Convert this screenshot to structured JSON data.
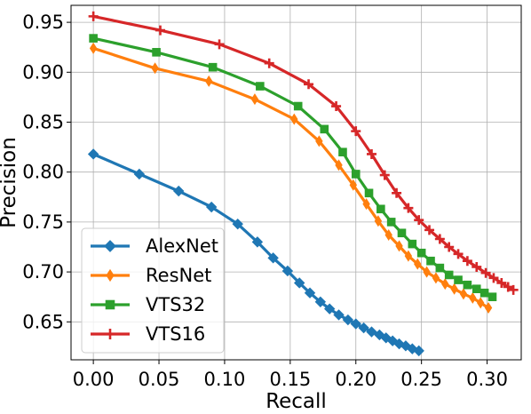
{
  "chart_data": {
    "type": "line",
    "title": "",
    "xlabel": "Recall",
    "ylabel": "Precision",
    "xlim": [
      -0.017,
      0.326
    ],
    "ylim": [
      0.612,
      0.967
    ],
    "grid": true,
    "legend_position": "lower-left",
    "xticks": [
      0.0,
      0.05,
      0.1,
      0.15,
      0.2,
      0.25,
      0.3
    ],
    "xtick_labels": [
      "0.00",
      "0.05",
      "0.10",
      "0.15",
      "0.20",
      "0.25",
      "0.30"
    ],
    "yticks": [
      0.65,
      0.7,
      0.75,
      0.8,
      0.85,
      0.9,
      0.95
    ],
    "ytick_labels": [
      "0.65",
      "0.70",
      "0.75",
      "0.80",
      "0.85",
      "0.90",
      "0.95"
    ],
    "series": [
      {
        "name": "AlexNet",
        "color": "#1f77b4",
        "marker": "diamond",
        "points": [
          [
            0.0,
            0.818
          ],
          [
            0.035,
            0.798
          ],
          [
            0.065,
            0.781
          ],
          [
            0.09,
            0.765
          ],
          [
            0.11,
            0.748
          ],
          [
            0.125,
            0.73
          ],
          [
            0.137,
            0.714
          ],
          [
            0.148,
            0.701
          ],
          [
            0.157,
            0.689
          ],
          [
            0.165,
            0.679
          ],
          [
            0.173,
            0.67
          ],
          [
            0.18,
            0.663
          ],
          [
            0.187,
            0.657
          ],
          [
            0.194,
            0.652
          ],
          [
            0.2,
            0.648
          ],
          [
            0.206,
            0.644
          ],
          [
            0.212,
            0.64
          ],
          [
            0.218,
            0.637
          ],
          [
            0.223,
            0.634
          ],
          [
            0.228,
            0.631
          ],
          [
            0.233,
            0.628
          ],
          [
            0.238,
            0.626
          ],
          [
            0.243,
            0.623
          ],
          [
            0.248,
            0.621
          ]
        ]
      },
      {
        "name": "ResNet",
        "color": "#ff7f0e",
        "marker": "thin-diamond",
        "points": [
          [
            0.0,
            0.924
          ],
          [
            0.047,
            0.904
          ],
          [
            0.088,
            0.891
          ],
          [
            0.123,
            0.873
          ],
          [
            0.153,
            0.853
          ],
          [
            0.172,
            0.831
          ],
          [
            0.187,
            0.807
          ],
          [
            0.198,
            0.787
          ],
          [
            0.208,
            0.768
          ],
          [
            0.217,
            0.751
          ],
          [
            0.225,
            0.737
          ],
          [
            0.233,
            0.726
          ],
          [
            0.24,
            0.716
          ],
          [
            0.247,
            0.708
          ],
          [
            0.254,
            0.7
          ],
          [
            0.261,
            0.694
          ],
          [
            0.268,
            0.688
          ],
          [
            0.275,
            0.683
          ],
          [
            0.282,
            0.678
          ],
          [
            0.289,
            0.674
          ],
          [
            0.295,
            0.669
          ],
          [
            0.301,
            0.664
          ]
        ]
      },
      {
        "name": "VTS32",
        "color": "#2ca02c",
        "marker": "square",
        "points": [
          [
            0.0,
            0.934
          ],
          [
            0.048,
            0.92
          ],
          [
            0.091,
            0.905
          ],
          [
            0.127,
            0.886
          ],
          [
            0.156,
            0.866
          ],
          [
            0.176,
            0.843
          ],
          [
            0.19,
            0.82
          ],
          [
            0.2,
            0.798
          ],
          [
            0.21,
            0.779
          ],
          [
            0.219,
            0.763
          ],
          [
            0.227,
            0.75
          ],
          [
            0.235,
            0.739
          ],
          [
            0.243,
            0.728
          ],
          [
            0.25,
            0.719
          ],
          [
            0.257,
            0.711
          ],
          [
            0.264,
            0.704
          ],
          [
            0.271,
            0.697
          ],
          [
            0.278,
            0.692
          ],
          [
            0.285,
            0.687
          ],
          [
            0.292,
            0.683
          ],
          [
            0.298,
            0.679
          ],
          [
            0.304,
            0.675
          ]
        ]
      },
      {
        "name": "VTS16",
        "color": "#d62728",
        "marker": "plus",
        "points": [
          [
            0.0,
            0.956
          ],
          [
            0.051,
            0.942
          ],
          [
            0.096,
            0.928
          ],
          [
            0.134,
            0.909
          ],
          [
            0.164,
            0.888
          ],
          [
            0.185,
            0.866
          ],
          [
            0.2,
            0.841
          ],
          [
            0.212,
            0.818
          ],
          [
            0.222,
            0.797
          ],
          [
            0.231,
            0.779
          ],
          [
            0.24,
            0.764
          ],
          [
            0.248,
            0.752
          ],
          [
            0.256,
            0.742
          ],
          [
            0.264,
            0.733
          ],
          [
            0.271,
            0.725
          ],
          [
            0.278,
            0.718
          ],
          [
            0.285,
            0.711
          ],
          [
            0.292,
            0.705
          ],
          [
            0.299,
            0.699
          ],
          [
            0.305,
            0.694
          ],
          [
            0.311,
            0.689
          ],
          [
            0.316,
            0.685
          ],
          [
            0.32,
            0.682
          ]
        ]
      }
    ]
  }
}
